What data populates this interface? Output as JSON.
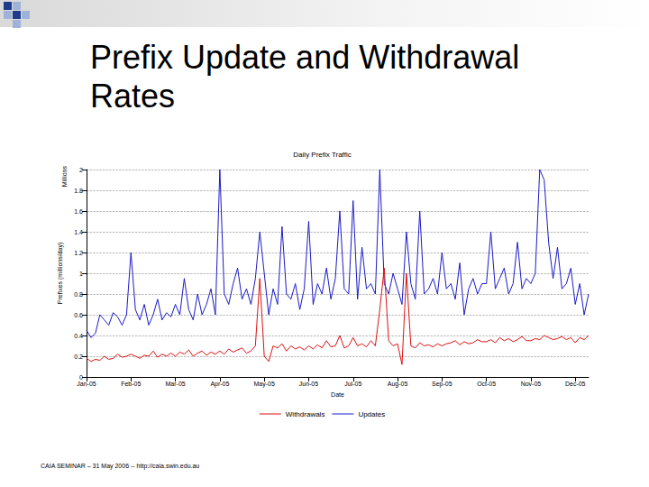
{
  "slide": {
    "title": "Prefix Update and Withdrawal Rates",
    "footer": "CAIA SEMINAR – 31 May 2006 -- http://caia.swin.edu.au"
  },
  "chart_data": {
    "type": "line",
    "title": "Daily Prefix Traffic",
    "x_label": "Date",
    "y_label": "Prefixes (millions/day)",
    "annotations": [
      "Millions"
    ],
    "categories": [
      "Jan-05",
      null,
      null,
      null,
      null,
      null,
      null,
      null,
      null,
      null,
      "Feb-05",
      null,
      null,
      null,
      null,
      null,
      null,
      null,
      null,
      null,
      "Mar-05",
      null,
      null,
      null,
      null,
      null,
      null,
      null,
      null,
      null,
      "Apr-05",
      null,
      null,
      null,
      null,
      null,
      null,
      null,
      null,
      null,
      "May-05",
      null,
      null,
      null,
      null,
      null,
      null,
      null,
      null,
      null,
      "Jun-05",
      null,
      null,
      null,
      null,
      null,
      null,
      null,
      null,
      null,
      "Jul-05",
      null,
      null,
      null,
      null,
      null,
      null,
      null,
      null,
      null,
      "Aug-05",
      null,
      null,
      null,
      null,
      null,
      null,
      null,
      null,
      null,
      "Sep-05",
      null,
      null,
      null,
      null,
      null,
      null,
      null,
      null,
      null,
      "Oct-05",
      null,
      null,
      null,
      null,
      null,
      null,
      null,
      null,
      null,
      "Nov-05",
      null,
      null,
      null,
      null,
      null,
      null,
      null,
      null,
      null,
      "Dec-05",
      null,
      null,
      null
    ],
    "series": [
      {
        "name": "Withdrawals",
        "color": "#dd1111",
        "values": [
          0.18,
          0.15,
          0.17,
          0.16,
          0.2,
          0.17,
          0.18,
          0.22,
          0.19,
          0.2,
          0.22,
          0.2,
          0.18,
          0.21,
          0.2,
          0.25,
          0.19,
          0.22,
          0.2,
          0.23,
          0.2,
          0.24,
          0.22,
          0.26,
          0.2,
          0.23,
          0.25,
          0.21,
          0.24,
          0.22,
          0.25,
          0.22,
          0.27,
          0.24,
          0.26,
          0.28,
          0.23,
          0.25,
          0.3,
          0.95,
          0.2,
          0.15,
          0.3,
          0.28,
          0.32,
          0.25,
          0.3,
          0.27,
          0.29,
          0.26,
          0.3,
          0.27,
          0.31,
          0.28,
          0.35,
          0.29,
          0.3,
          0.4,
          0.28,
          0.3,
          0.38,
          0.3,
          0.32,
          0.29,
          0.35,
          0.3,
          0.65,
          1.05,
          0.35,
          0.3,
          0.32,
          0.12,
          1.0,
          0.3,
          0.28,
          0.33,
          0.3,
          0.31,
          0.29,
          0.32,
          0.3,
          0.32,
          0.33,
          0.35,
          0.31,
          0.34,
          0.32,
          0.33,
          0.36,
          0.34,
          0.34,
          0.36,
          0.33,
          0.38,
          0.35,
          0.37,
          0.34,
          0.36,
          0.39,
          0.35,
          0.35,
          0.37,
          0.36,
          0.4,
          0.38,
          0.36,
          0.37,
          0.39,
          0.36,
          0.38,
          0.33,
          0.38,
          0.36,
          0.4
        ]
      },
      {
        "name": "Updates",
        "color": "#1a1ac8",
        "values": [
          0.45,
          0.38,
          0.42,
          0.6,
          0.55,
          0.5,
          0.62,
          0.58,
          0.5,
          0.6,
          1.2,
          0.65,
          0.55,
          0.7,
          0.5,
          0.6,
          0.75,
          0.55,
          0.62,
          0.58,
          0.7,
          0.6,
          0.95,
          0.65,
          0.55,
          0.8,
          0.6,
          0.7,
          0.85,
          0.6,
          2.0,
          0.8,
          0.7,
          0.9,
          1.05,
          0.75,
          0.85,
          0.7,
          0.95,
          1.4,
          1.0,
          0.6,
          0.85,
          0.7,
          1.45,
          0.8,
          0.75,
          0.9,
          0.65,
          0.85,
          1.5,
          0.7,
          0.9,
          0.8,
          1.05,
          0.75,
          0.95,
          1.6,
          0.85,
          0.8,
          1.7,
          0.75,
          1.25,
          0.85,
          0.9,
          0.8,
          2.0,
          0.9,
          0.8,
          1.0,
          0.85,
          0.7,
          1.4,
          0.9,
          0.75,
          1.6,
          0.8,
          0.85,
          0.95,
          0.8,
          1.2,
          0.85,
          0.9,
          0.75,
          1.1,
          0.6,
          0.85,
          0.95,
          0.8,
          0.9,
          0.9,
          1.4,
          0.85,
          0.95,
          1.05,
          0.8,
          0.9,
          1.3,
          0.85,
          0.95,
          0.9,
          1.0,
          2.0,
          1.9,
          1.3,
          0.95,
          1.25,
          0.85,
          0.9,
          1.05,
          0.7,
          0.9,
          0.6,
          0.8
        ]
      }
    ],
    "ylim": [
      0,
      2
    ],
    "yticks": [
      0,
      0.2,
      0.4,
      0.6,
      0.8,
      1,
      1.2,
      1.4,
      1.6,
      1.8,
      2
    ],
    "grid": true,
    "legend": "bottom"
  }
}
